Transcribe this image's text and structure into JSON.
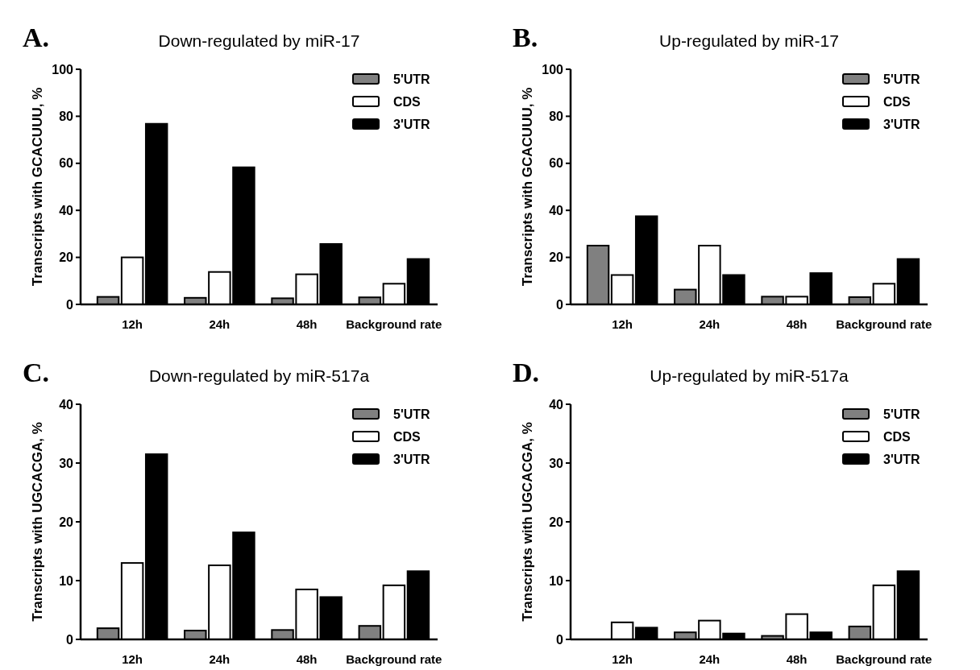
{
  "chart_data": [
    {
      "type": "bar",
      "title": "Down-regulated by miR-17",
      "annotations": [
        "A."
      ],
      "ylabel": "Transcripts with GCACUUU, %",
      "categories": [
        "12h",
        "24h",
        "48h",
        "Background rate"
      ],
      "legend": "top right",
      "ylim": [
        0,
        100
      ],
      "yticks": [
        0,
        20,
        40,
        60,
        80,
        100
      ],
      "series": [
        {
          "name": "5'UTR",
          "color": "#808080",
          "values": [
            3.2,
            2.8,
            2.6,
            3.0
          ]
        },
        {
          "name": "CDS",
          "color": "#ffffff",
          "values": [
            20,
            13.8,
            12.8,
            8.8
          ]
        },
        {
          "name": "3'UTR",
          "color": "#000000",
          "values": [
            76.8,
            58.3,
            25.7,
            19.3
          ]
        }
      ]
    },
    {
      "type": "bar",
      "title": "Up-regulated by miR-17",
      "annotations": [
        "B."
      ],
      "ylabel": "Transcripts with GCACUUU, %",
      "categories": [
        "12h",
        "24h",
        "48h",
        "Background rate"
      ],
      "legend": "top right",
      "ylim": [
        0,
        100
      ],
      "yticks": [
        0,
        20,
        40,
        60,
        80,
        100
      ],
      "series": [
        {
          "name": "5'UTR",
          "color": "#808080",
          "values": [
            25,
            6.3,
            3.3,
            3.1
          ]
        },
        {
          "name": "CDS",
          "color": "#ffffff",
          "values": [
            12.5,
            25,
            3.3,
            8.8
          ]
        },
        {
          "name": "3'UTR",
          "color": "#000000",
          "values": [
            37.5,
            12.5,
            13.3,
            19.3
          ]
        }
      ]
    },
    {
      "type": "bar",
      "title": "Down-regulated by miR-517a",
      "annotations": [
        "C."
      ],
      "ylabel": "Transcripts with UGCACGA, %",
      "categories": [
        "12h",
        "24h",
        "48h",
        "Background rate"
      ],
      "legend": "top right",
      "ylim": [
        0,
        40
      ],
      "yticks": [
        0,
        10,
        20,
        30,
        40
      ],
      "series": [
        {
          "name": "5'UTR",
          "color": "#808080",
          "values": [
            1.9,
            1.5,
            1.6,
            2.3
          ]
        },
        {
          "name": "CDS",
          "color": "#ffffff",
          "values": [
            13,
            12.6,
            8.5,
            9.2
          ]
        },
        {
          "name": "3'UTR",
          "color": "#000000",
          "values": [
            31.5,
            18.2,
            7.2,
            11.6
          ]
        }
      ]
    },
    {
      "type": "bar",
      "title": "Up-regulated by miR-517a",
      "annotations": [
        "D."
      ],
      "ylabel": "Transcripts with UGCACGA, %",
      "categories": [
        "12h",
        "24h",
        "48h",
        "Background rate"
      ],
      "legend": "top right",
      "ylim": [
        0,
        40
      ],
      "yticks": [
        0,
        10,
        20,
        30,
        40
      ],
      "series": [
        {
          "name": "5'UTR",
          "color": "#808080",
          "values": [
            0,
            1.2,
            0.6,
            2.2
          ]
        },
        {
          "name": "CDS",
          "color": "#ffffff",
          "values": [
            2.9,
            3.2,
            4.3,
            9.2
          ]
        },
        {
          "name": "3'UTR",
          "color": "#000000",
          "values": [
            2.0,
            1.0,
            1.2,
            11.6
          ]
        }
      ]
    }
  ]
}
